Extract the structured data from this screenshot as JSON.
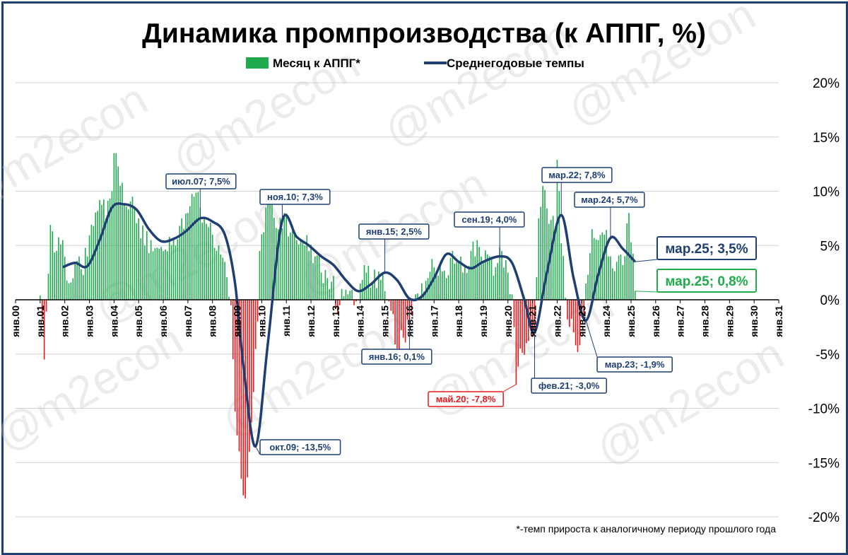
{
  "chart_data": {
    "type": "bar+line",
    "title": "Динамика промпроизводства (к АППГ, %)",
    "legend": [
      {
        "name": "Месяц к АППГ*",
        "color": "#1faa4e",
        "kind": "bar"
      },
      {
        "name": "Среднегодовые темпы",
        "color": "#1f3f73",
        "kind": "line"
      }
    ],
    "legend_placement": "top-center",
    "footnote": "*-темп прироста к аналогичному периоду прошлого года",
    "watermark": "@m2econ",
    "y_axis": {
      "side": "right",
      "min": -20,
      "max": 20,
      "step": 5,
      "tick_labels": [
        "20%",
        "15%",
        "10%",
        "5%",
        "0%",
        "-5%",
        "-10%",
        "-15%",
        "-20%"
      ],
      "grid": true
    },
    "x_axis": {
      "start": "янв.00",
      "end": "янв.31",
      "tick_labels": [
        "янв.00",
        "янв.01",
        "янв.02",
        "янв.03",
        "янв.04",
        "янв.05",
        "янв.06",
        "янв.07",
        "янв.08",
        "янв.09",
        "янв.10",
        "янв.11",
        "янв.12",
        "янв.13",
        "янв.14",
        "янв.15",
        "янв.16",
        "янв.17",
        "янв.18",
        "янв.19",
        "янв.20",
        "янв.21",
        "янв.22",
        "янв.23",
        "янв.24",
        "янв.25",
        "янв.26",
        "янв.27",
        "янв.28",
        "янв.29",
        "янв.30",
        "янв.31"
      ]
    },
    "colors": {
      "positive": "#1faa4e",
      "negative": "#e8191d",
      "line": "#1f3f73"
    },
    "series": [
      {
        "name": "Месяц к АППГ*",
        "kind": "bar",
        "data_note": "monthly values, % y/y, approximate",
        "points": [
          [
            "2001-01",
            0.4
          ],
          [
            "2001-03",
            -5.5
          ],
          [
            "2001-06",
            6.9
          ],
          [
            "2001-09",
            4.5
          ],
          [
            "2001-12",
            5.5
          ],
          [
            "2002-03",
            1.5
          ],
          [
            "2002-06",
            3.5
          ],
          [
            "2002-09",
            2.8
          ],
          [
            "2002-12",
            4.0
          ],
          [
            "2003-03",
            6.8
          ],
          [
            "2003-06",
            9.2
          ],
          [
            "2003-09",
            7.5
          ],
          [
            "2003-12",
            10.0
          ],
          [
            "2004-01",
            13.5
          ],
          [
            "2004-04",
            10.5
          ],
          [
            "2004-07",
            8.6
          ],
          [
            "2004-10",
            9.5
          ],
          [
            "2005-01",
            7.5
          ],
          [
            "2005-04",
            5.0
          ],
          [
            "2005-07",
            5.5
          ],
          [
            "2005-10",
            4.8
          ],
          [
            "2006-01",
            4.5
          ],
          [
            "2006-04",
            5.8
          ],
          [
            "2006-07",
            5.0
          ],
          [
            "2006-10",
            7.5
          ],
          [
            "2007-01",
            8.0
          ],
          [
            "2007-04",
            9.5
          ],
          [
            "2007-07",
            8.5
          ],
          [
            "2007-10",
            7.0
          ],
          [
            "2008-01",
            6.0
          ],
          [
            "2008-04",
            5.0
          ],
          [
            "2008-07",
            3.5
          ],
          [
            "2008-10",
            -0.5
          ],
          [
            "2008-12",
            -10.3
          ],
          [
            "2009-01",
            -12.5
          ],
          [
            "2009-03",
            -16.5
          ],
          [
            "2009-05",
            -18.3
          ],
          [
            "2009-07",
            -14.0
          ],
          [
            "2009-09",
            -8.5
          ],
          [
            "2009-11",
            -2.0
          ],
          [
            "2009-12",
            4.5
          ],
          [
            "2010-03",
            8.5
          ],
          [
            "2010-06",
            9.5
          ],
          [
            "2010-09",
            6.5
          ],
          [
            "2010-12",
            8.0
          ],
          [
            "2011-03",
            6.2
          ],
          [
            "2011-06",
            5.5
          ],
          [
            "2011-09",
            5.5
          ],
          [
            "2011-12",
            4.5
          ],
          [
            "2012-03",
            4.0
          ],
          [
            "2012-06",
            2.5
          ],
          [
            "2012-09",
            2.0
          ],
          [
            "2012-12",
            2.2
          ],
          [
            "2013-01",
            -0.8
          ],
          [
            "2013-04",
            1.0
          ],
          [
            "2013-07",
            0.5
          ],
          [
            "2013-10",
            -0.5
          ],
          [
            "2014-01",
            1.5
          ],
          [
            "2014-04",
            2.5
          ],
          [
            "2014-07",
            1.5
          ],
          [
            "2014-10",
            2.6
          ],
          [
            "2015-01",
            0.8
          ],
          [
            "2015-04",
            -1.0
          ],
          [
            "2015-07",
            -4.5
          ],
          [
            "2015-10",
            -3.5
          ],
          [
            "2016-01",
            -2.5
          ],
          [
            "2016-04",
            0.5
          ],
          [
            "2016-07",
            1.5
          ],
          [
            "2016-10",
            2.0
          ],
          [
            "2017-01",
            3.0
          ],
          [
            "2017-04",
            3.5
          ],
          [
            "2017-07",
            2.0
          ],
          [
            "2017-10",
            4.5
          ],
          [
            "2018-01",
            3.5
          ],
          [
            "2018-04",
            3.0
          ],
          [
            "2018-07",
            4.5
          ],
          [
            "2018-10",
            5.5
          ],
          [
            "2019-01",
            3.5
          ],
          [
            "2019-04",
            4.0
          ],
          [
            "2019-07",
            3.0
          ],
          [
            "2019-10",
            4.5
          ],
          [
            "2020-01",
            2.5
          ],
          [
            "2020-03",
            0.5
          ],
          [
            "2020-05",
            -7.8
          ],
          [
            "2020-07",
            -4.5
          ],
          [
            "2020-10",
            -4.0
          ],
          [
            "2020-12",
            -2.0
          ],
          [
            "2021-02",
            -3.0
          ],
          [
            "2021-04",
            7.5
          ],
          [
            "2021-06",
            10.5
          ],
          [
            "2021-09",
            7.0
          ],
          [
            "2021-12",
            6.5
          ],
          [
            "2022-01",
            12.9
          ],
          [
            "2022-03",
            5.2
          ],
          [
            "2022-06",
            -1.8
          ],
          [
            "2022-09",
            -3.0
          ],
          [
            "2022-12",
            -4.2
          ],
          [
            "2023-03",
            1.5
          ],
          [
            "2023-06",
            6.5
          ],
          [
            "2023-09",
            5.5
          ],
          [
            "2023-12",
            6.0
          ],
          [
            "2024-03",
            4.0
          ],
          [
            "2024-06",
            3.5
          ],
          [
            "2024-09",
            3.2
          ],
          [
            "2024-12",
            8.0
          ],
          [
            "2025-03",
            0.8
          ]
        ]
      },
      {
        "name": "Среднегодовые темпы",
        "kind": "line",
        "data_note": "12-month average growth, % y/y, approximate",
        "points": [
          [
            "2001-12",
            3.0
          ],
          [
            "2002-06",
            3.4
          ],
          [
            "2002-12",
            3.1
          ],
          [
            "2003-06",
            5.5
          ],
          [
            "2003-12",
            8.5
          ],
          [
            "2004-06",
            8.8
          ],
          [
            "2004-12",
            8.3
          ],
          [
            "2005-06",
            6.5
          ],
          [
            "2005-12",
            5.4
          ],
          [
            "2006-06",
            5.6
          ],
          [
            "2006-12",
            6.3
          ],
          [
            "2007-07",
            7.5
          ],
          [
            "2008-01",
            7.2
          ],
          [
            "2008-07",
            6.0
          ],
          [
            "2008-12",
            1.5
          ],
          [
            "2009-04",
            -6.0
          ],
          [
            "2009-10",
            -13.5
          ],
          [
            "2010-04",
            -4.0
          ],
          [
            "2010-11",
            7.3
          ],
          [
            "2011-06",
            5.8
          ],
          [
            "2011-12",
            5.0
          ],
          [
            "2012-06",
            4.0
          ],
          [
            "2012-12",
            3.2
          ],
          [
            "2013-06",
            1.8
          ],
          [
            "2013-12",
            0.8
          ],
          [
            "2014-06",
            1.4
          ],
          [
            "2015-01",
            2.5
          ],
          [
            "2015-07",
            1.8
          ],
          [
            "2016-01",
            0.1
          ],
          [
            "2016-07",
            0.3
          ],
          [
            "2017-01",
            2.0
          ],
          [
            "2017-07",
            4.2
          ],
          [
            "2018-01",
            3.5
          ],
          [
            "2018-07",
            2.9
          ],
          [
            "2019-01",
            3.5
          ],
          [
            "2019-09",
            4.0
          ],
          [
            "2020-03",
            3.4
          ],
          [
            "2020-09",
            0.0
          ],
          [
            "2021-02",
            -3.0
          ],
          [
            "2021-08",
            2.5
          ],
          [
            "2022-03",
            7.8
          ],
          [
            "2022-09",
            2.0
          ],
          [
            "2023-03",
            -1.9
          ],
          [
            "2023-09",
            2.3
          ],
          [
            "2024-03",
            5.7
          ],
          [
            "2024-09",
            4.7
          ],
          [
            "2025-03",
            3.5
          ]
        ]
      }
    ],
    "annotations": [
      {
        "label": "июл.07; 7,5%",
        "x": "2007-07",
        "y": 7.5,
        "color": "#1f3f73"
      },
      {
        "label": "ноя.10; 7,3%",
        "x": "2010-11",
        "y": 7.3,
        "color": "#1f3f73"
      },
      {
        "label": "окт.09; -13,5%",
        "x": "2009-10",
        "y": -13.5,
        "color": "#1f3f73"
      },
      {
        "label": "янв.15; 2,5%",
        "x": "2015-01",
        "y": 2.5,
        "color": "#1f3f73"
      },
      {
        "label": "янв.16; 0,1%",
        "x": "2016-01",
        "y": 0.1,
        "color": "#1f3f73"
      },
      {
        "label": "сен.19; 4,0%",
        "x": "2019-09",
        "y": 4.0,
        "color": "#1f3f73"
      },
      {
        "label": "май.20; -7,8%",
        "x": "2020-05",
        "y": -7.8,
        "color": "#e8191d"
      },
      {
        "label": "фев.21; -3,0%",
        "x": "2021-02",
        "y": -3.0,
        "color": "#1f3f73"
      },
      {
        "label": "мар.22; 7,8%",
        "x": "2022-03",
        "y": 7.8,
        "color": "#1f3f73"
      },
      {
        "label": "мар.23; -1,9%",
        "x": "2023-03",
        "y": -1.9,
        "color": "#1f3f73"
      },
      {
        "label": "мар.24; 5,7%",
        "x": "2024-03",
        "y": 5.7,
        "color": "#1f3f73"
      },
      {
        "label": "мар.25; 3,5%",
        "x": "2025-03",
        "y": 3.5,
        "color": "#1f3f73",
        "big": true
      },
      {
        "label": "мар.25; 0,8%",
        "x": "2025-03",
        "y": 0.8,
        "color": "#1faa4e",
        "big": true
      }
    ]
  }
}
